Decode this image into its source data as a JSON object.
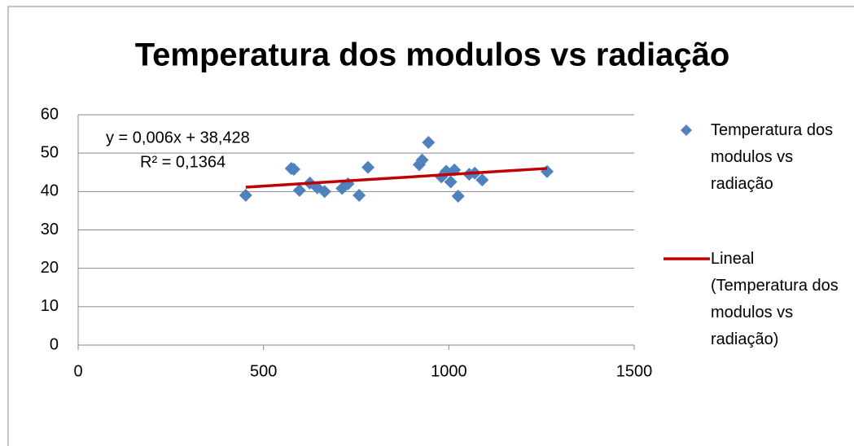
{
  "chart_data": {
    "type": "scatter",
    "title": "Temperatura dos modulos vs radiação",
    "annotations": [
      "y = 0,006x + 38,428",
      "R² = 0,1364"
    ],
    "series": [
      {
        "name": "Temperatura dos modulos vs radiação",
        "color": "#4f81bd",
        "x": [
          452,
          575,
          582,
          597,
          625,
          645,
          665,
          712,
          728,
          758,
          782,
          920,
          928,
          945,
          980,
          993,
          1005,
          1015,
          1025,
          1055,
          1070,
          1090,
          1265
        ],
        "values": [
          39,
          46,
          45.8,
          40.3,
          42.2,
          41,
          40,
          40.8,
          42,
          39,
          46.3,
          47,
          48.2,
          52.8,
          43.8,
          45.3,
          42.5,
          45.6,
          38.8,
          44.5,
          44.8,
          43,
          45.2
        ]
      },
      {
        "name": "Lineal (Temperatura dos modulos vs radiação)",
        "color": "#c00000",
        "type": "line",
        "x": [
          452,
          1265
        ],
        "values": [
          41.14,
          46.02
        ]
      }
    ],
    "xlim": [
      0,
      1500
    ],
    "xticks": [
      0,
      500,
      1000,
      1500
    ],
    "ylim": [
      0,
      60
    ],
    "yticks": [
      0,
      10,
      20,
      30,
      40,
      50,
      60
    ],
    "grid": true
  }
}
